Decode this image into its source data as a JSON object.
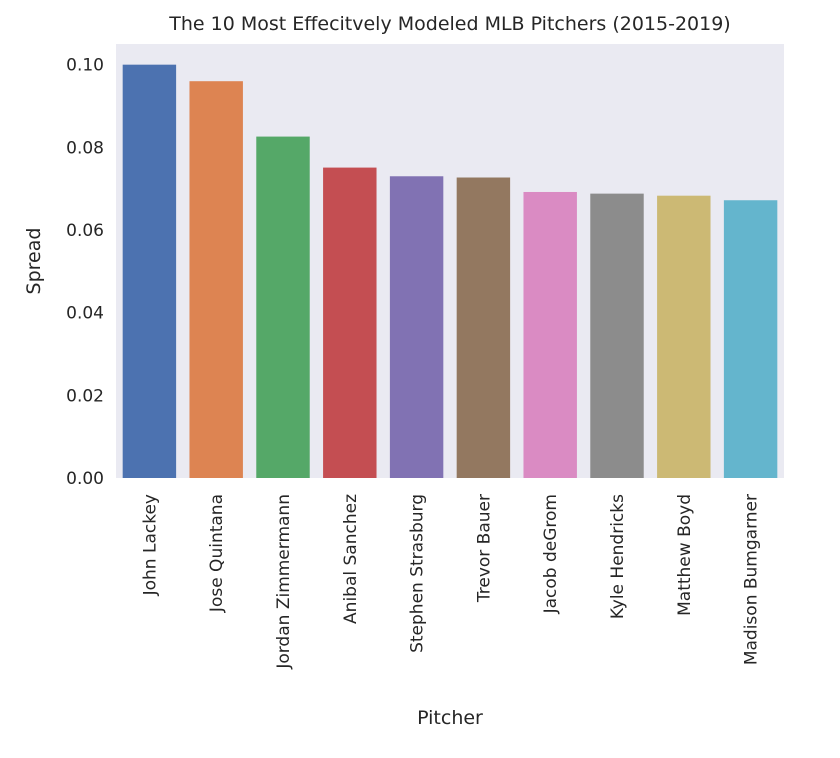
{
  "chart_data": {
    "type": "bar",
    "title": "The 10 Most Effecitvely Modeled MLB Pitchers (2015-2019)",
    "xlabel": "Pitcher",
    "ylabel": "Spread",
    "categories": [
      "John Lackey",
      "Jose Quintana",
      "Jordan Zimmermann",
      "Anibal Sanchez",
      "Stephen Strasburg",
      "Trevor Bauer",
      "Jacob deGrom",
      "Kyle Hendricks",
      "Matthew Boyd",
      "Madison Bumgarner"
    ],
    "values": [
      0.1,
      0.096,
      0.0826,
      0.0751,
      0.073,
      0.0727,
      0.0692,
      0.0688,
      0.0683,
      0.0672
    ],
    "ylim": [
      0,
      0.105
    ],
    "yticks": [
      "0.00",
      "0.02",
      "0.04",
      "0.06",
      "0.08",
      "0.10"
    ],
    "colors": [
      "#4c72b0",
      "#dd8452",
      "#55a868",
      "#c44e52",
      "#8172b3",
      "#937860",
      "#da8bc3",
      "#8c8c8c",
      "#ccb974",
      "#64b5cd"
    ],
    "background": "#eaeaf2",
    "grid": false,
    "legend": "none"
  }
}
